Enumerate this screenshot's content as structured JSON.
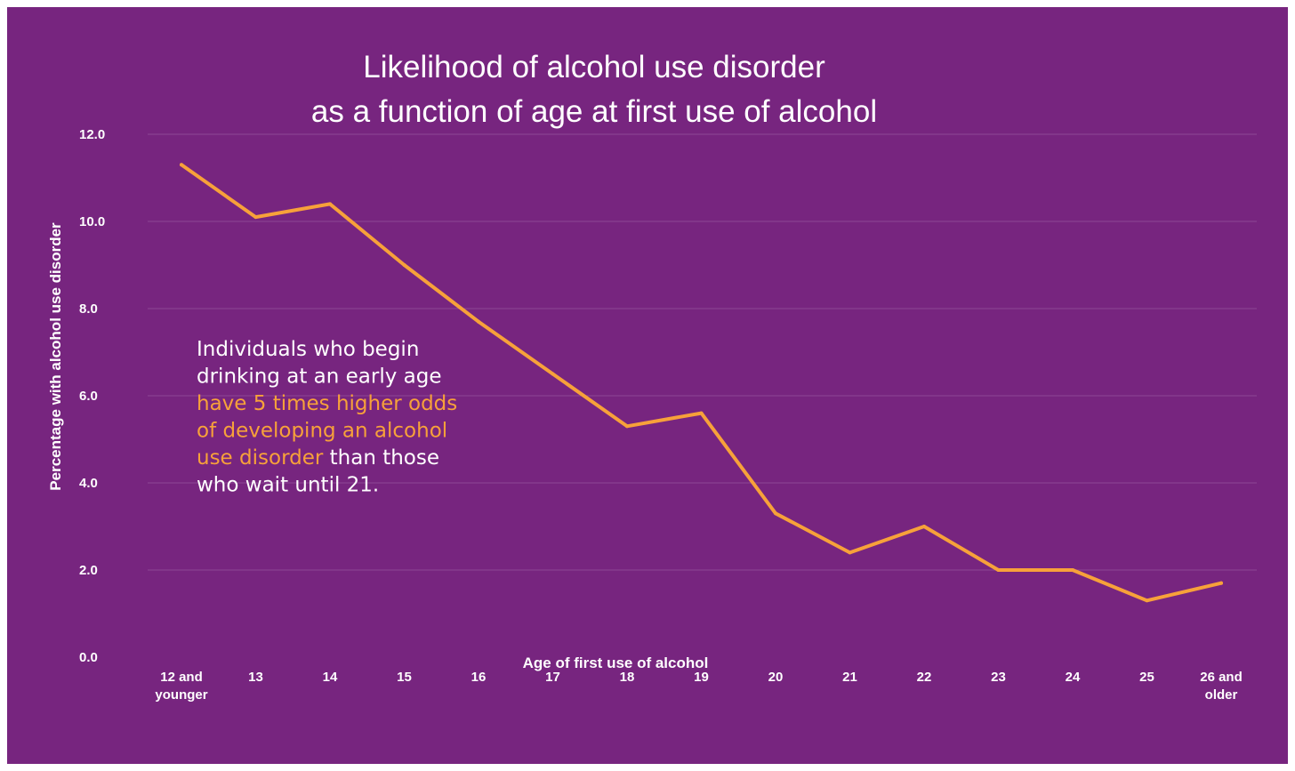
{
  "colors": {
    "background": "#77257f",
    "line": "#f7a13a",
    "highlight": "#f7a13a",
    "text": "#ffffff",
    "grid": "#8d4794"
  },
  "chart_data": {
    "type": "line",
    "title_lines": [
      "Likelihood of alcohol use disorder",
      "as a function of age at first use of alcohol"
    ],
    "xlabel": "Age of first use of alcohol",
    "ylabel": "Percentage with alcohol use disorder",
    "categories": [
      [
        "12 and",
        "younger"
      ],
      [
        "13"
      ],
      [
        "14"
      ],
      [
        "15"
      ],
      [
        "16"
      ],
      [
        "17"
      ],
      [
        "18"
      ],
      [
        "19"
      ],
      [
        "20"
      ],
      [
        "21"
      ],
      [
        "22"
      ],
      [
        "23"
      ],
      [
        "24"
      ],
      [
        "25"
      ],
      [
        "26 and",
        "older"
      ]
    ],
    "values": [
      11.3,
      10.1,
      10.4,
      9.0,
      7.7,
      6.5,
      5.3,
      5.6,
      3.3,
      2.4,
      3.0,
      2.0,
      2.0,
      1.3,
      1.7
    ],
    "ylim": [
      0,
      12
    ],
    "yticks": [
      "0.0",
      "2.0",
      "4.0",
      "6.0",
      "8.0",
      "10.0",
      "12.0"
    ],
    "grid": true,
    "legend": "none",
    "annotation": {
      "lines": [
        [
          {
            "text": "Individuals who begin",
            "highlight": false
          }
        ],
        [
          {
            "text": "drinking at an early age",
            "highlight": false
          }
        ],
        [
          {
            "text": "have 5 times higher odds",
            "highlight": true
          }
        ],
        [
          {
            "text": "of developing an alcohol",
            "highlight": true
          }
        ],
        [
          {
            "text": "use disorder",
            "highlight": true
          },
          {
            "text": " than those",
            "highlight": false
          }
        ],
        [
          {
            "text": "who wait until 21.",
            "highlight": false
          }
        ]
      ]
    }
  }
}
